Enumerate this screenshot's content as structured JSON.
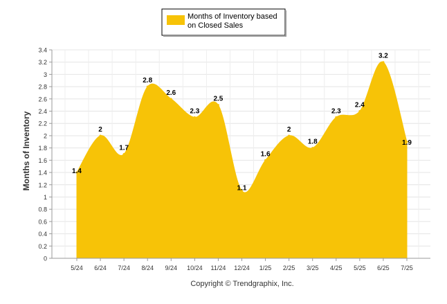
{
  "chart_data": {
    "type": "area",
    "categories": [
      "5/24",
      "6/24",
      "7/24",
      "8/24",
      "9/24",
      "10/24",
      "11/24",
      "12/24",
      "1/25",
      "2/25",
      "3/25",
      "4/25",
      "5/25",
      "6/25",
      "7/25"
    ],
    "series": [
      {
        "name": "Months of Inventory based on Closed Sales",
        "values": [
          1.4,
          2,
          1.7,
          2.8,
          2.6,
          2.3,
          2.5,
          1.1,
          1.6,
          2,
          1.8,
          2.3,
          2.4,
          3.2,
          1.9
        ],
        "labels": [
          "1.4",
          "2",
          "1.7",
          "2.8",
          "2.6",
          "2.3",
          "2.5",
          "1.1",
          "1.6",
          "2",
          "1.8",
          "2.3",
          "2.4",
          "3.2",
          "1.9"
        ],
        "color": "#F7C307"
      }
    ],
    "legend": {
      "line1": "Months of Inventory based",
      "line2": "on Closed Sales",
      "placement": "top-center"
    },
    "ylabel": "Months of Inventory",
    "xlabel": "",
    "title": "",
    "ylim": [
      0,
      3.4
    ],
    "yticks": [
      "0",
      "0.2",
      "0.4",
      "0.6",
      "0.8",
      "1",
      "1.2",
      "1.4",
      "1.6",
      "1.8",
      "2",
      "2.2",
      "2.4",
      "2.6",
      "2.8",
      "3",
      "3.2",
      "3.4"
    ],
    "grid": true,
    "copyright": "Copyright © Trendgraphix, Inc."
  }
}
